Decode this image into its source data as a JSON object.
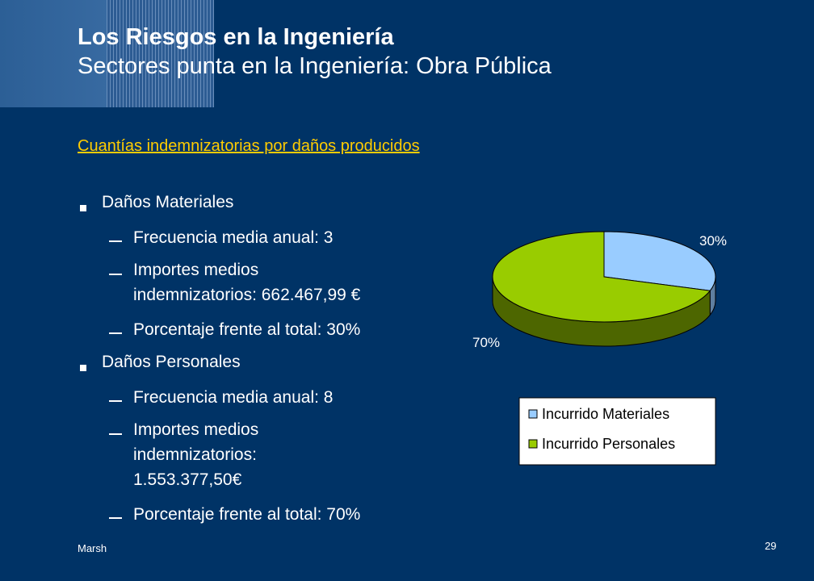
{
  "slide": {
    "title": "Los Riesgos en la Ingeniería",
    "subtitle": "Sectores punta en la Ingeniería: Obra Pública",
    "section_link": "Cuantías indemnizatorias por daños producidos",
    "bullets": {
      "materiales": {
        "label": "Daños Materiales",
        "frecuencia": "Frecuencia media anual: 3",
        "importes_line1": "Importes medios",
        "importes_line2": "indemnizatorios: 662.467,99 €",
        "porcentaje": "Porcentaje frente al total: 30%"
      },
      "personales": {
        "label": "Daños Personales",
        "frecuencia": "Frecuencia media anual: 8",
        "importes_line1": "Importes medios",
        "importes_line2": "indemnizatorios:",
        "importes_line3": "1.553.377,50€",
        "porcentaje": "Porcentaje frente al total: 70%"
      }
    },
    "footer_left": "Marsh",
    "page_number": "29",
    "colors": {
      "background": "#003366",
      "link": "#ffcc00",
      "materiales": "#99ccff",
      "personales": "#99cc00",
      "personales_side": "#4d6600"
    }
  },
  "chart_data": {
    "type": "pie",
    "categories": [
      "Incurrido Materiales",
      "Incurrido Personales"
    ],
    "values": [
      30,
      70
    ],
    "labels": [
      "30%",
      "70%"
    ],
    "legend": [
      "Incurrido Materiales",
      "Incurrido Personales"
    ],
    "legend_position": "bottom",
    "style": "3d"
  }
}
